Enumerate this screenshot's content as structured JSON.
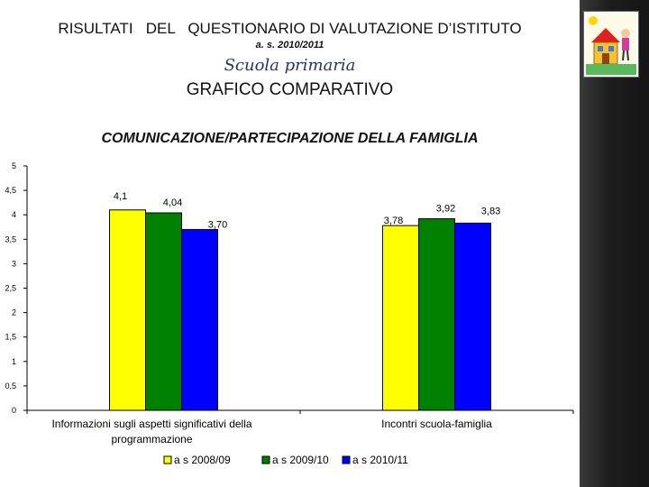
{
  "header": {
    "title": "RISULTATI   DEL   QUESTIONARIO DI VALUTAZIONE D’ISTITUTO",
    "year": "a. s. 2010/2011",
    "school": "Scuola  primaria",
    "subtitle": "GRAFICO COMPARATIVO"
  },
  "logo_icon": "school-drawing-icon",
  "chart_data": {
    "type": "bar",
    "title": "COMUNICAZIONE/PARTECIPAZIONE DELLA FAMIGLIA",
    "categories": [
      "Informazioni sugli aspetti significativi della programmazione",
      "Incontri scuola-famiglia"
    ],
    "category_lines": [
      [
        "Informazioni sugli aspetti significativi della",
        "programmazione"
      ],
      [
        "Incontri scuola-famiglia"
      ]
    ],
    "series": [
      {
        "name": "a s 2008/09",
        "values": [
          4.1,
          3.78
        ],
        "labels": [
          "4,1",
          "3,78"
        ],
        "color": "#ffff00"
      },
      {
        "name": "a s 2009/10",
        "values": [
          4.04,
          3.92
        ],
        "labels": [
          "4,04",
          "3,92"
        ],
        "color": "#008000"
      },
      {
        "name": "a s 2010/11",
        "values": [
          3.7,
          3.83
        ],
        "labels": [
          "3,70",
          "3,83"
        ],
        "color": "#0000ff"
      }
    ],
    "ylim": [
      0,
      5
    ],
    "yticks": [
      0,
      0.5,
      1,
      1.5,
      2,
      2.5,
      3,
      3.5,
      4,
      4.5,
      5
    ],
    "ytick_labels": [
      "0",
      "0,5",
      "1",
      "1,5",
      "2",
      "2,5",
      "3",
      "3,5",
      "4",
      "4,5",
      "5"
    ],
    "grid": false,
    "legend": "bottom"
  }
}
